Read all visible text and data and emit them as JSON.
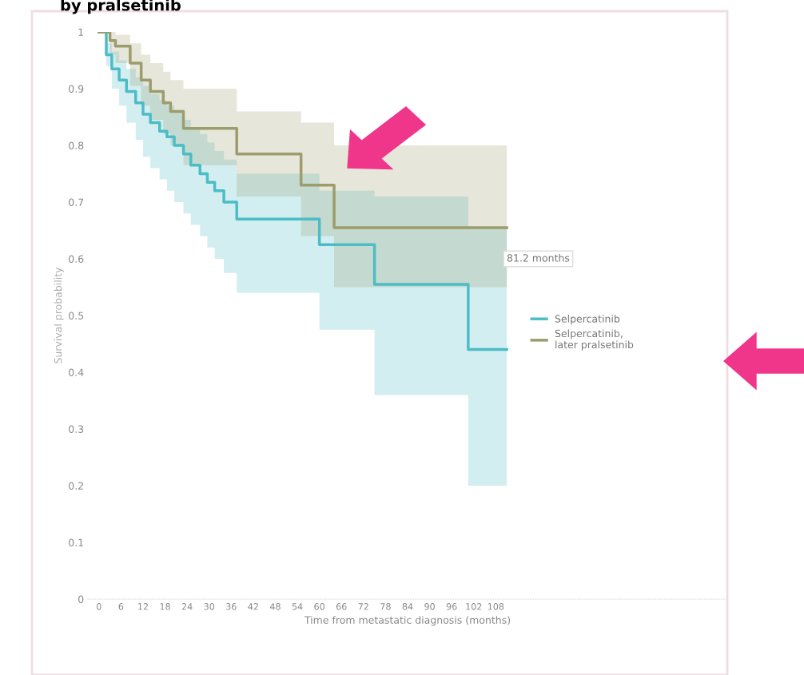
{
  "chart_data": {
    "type": "step",
    "title": "by pralsetinib",
    "ylabel": "Survival probability",
    "xlabel": "Time from metastatic diagnosis (months)",
    "xlim": [
      -3,
      171
    ],
    "ylim": [
      0,
      1
    ],
    "xticks": [
      0,
      6,
      12,
      18,
      24,
      30,
      36,
      42,
      48,
      54,
      60,
      66,
      72,
      78,
      84,
      90,
      96,
      102,
      108
    ],
    "yticks": [
      {
        "value": 0,
        "label": "0"
      },
      0.1,
      0.2,
      0.3,
      0.4,
      0.5,
      0.6,
      0.7,
      0.8,
      0.9,
      {
        "value": 1,
        "label": "1"
      }
    ],
    "grid": false,
    "legend": "right",
    "marker": "none",
    "line_style": "solid",
    "annotations": [
      "81.2 months"
    ],
    "series": [
      {
        "name": "Selpercatinib",
        "color": "#4cbcc6",
        "x": [
          0,
          2,
          3.5,
          5.5,
          7.5,
          10,
          12,
          14,
          16.5,
          18.5,
          20.5,
          23,
          25,
          27.5,
          29.5,
          31.5,
          34,
          37.5,
          60,
          75,
          100.5,
          111
        ],
        "values": [
          1,
          0.96,
          0.935,
          0.915,
          0.895,
          0.875,
          0.855,
          0.84,
          0.825,
          0.815,
          0.8,
          0.785,
          0.765,
          0.75,
          0.735,
          0.72,
          0.7,
          0.67,
          0.625,
          0.555,
          0.44,
          0.44
        ],
        "lower": [
          1,
          0.94,
          0.9,
          0.87,
          0.84,
          0.81,
          0.78,
          0.76,
          0.74,
          0.72,
          0.7,
          0.68,
          0.66,
          0.64,
          0.62,
          0.6,
          0.575,
          0.54,
          0.475,
          0.36,
          0.2,
          0.2
        ],
        "upper": [
          1,
          0.98,
          0.965,
          0.95,
          0.935,
          0.92,
          0.905,
          0.89,
          0.88,
          0.87,
          0.86,
          0.845,
          0.83,
          0.82,
          0.805,
          0.79,
          0.775,
          0.75,
          0.72,
          0.71,
          0.655,
          0.655
        ]
      },
      {
        "name": "Selpercatinib, later pralsetinib",
        "color": "#9c9c6c",
        "x": [
          0,
          3,
          4.5,
          8.5,
          11.5,
          14,
          17.5,
          19.5,
          23,
          37.5,
          55,
          64,
          111
        ],
        "values": [
          1,
          0.985,
          0.975,
          0.945,
          0.915,
          0.895,
          0.875,
          0.86,
          0.83,
          0.785,
          0.73,
          0.655,
          0.655
        ],
        "lower": [
          1,
          0.96,
          0.945,
          0.905,
          0.87,
          0.845,
          0.82,
          0.8,
          0.765,
          0.71,
          0.64,
          0.55,
          0.55
        ],
        "upper": [
          1,
          1,
          0.995,
          0.98,
          0.96,
          0.945,
          0.93,
          0.915,
          0.9,
          0.86,
          0.84,
          0.8,
          0.8
        ]
      }
    ]
  }
}
